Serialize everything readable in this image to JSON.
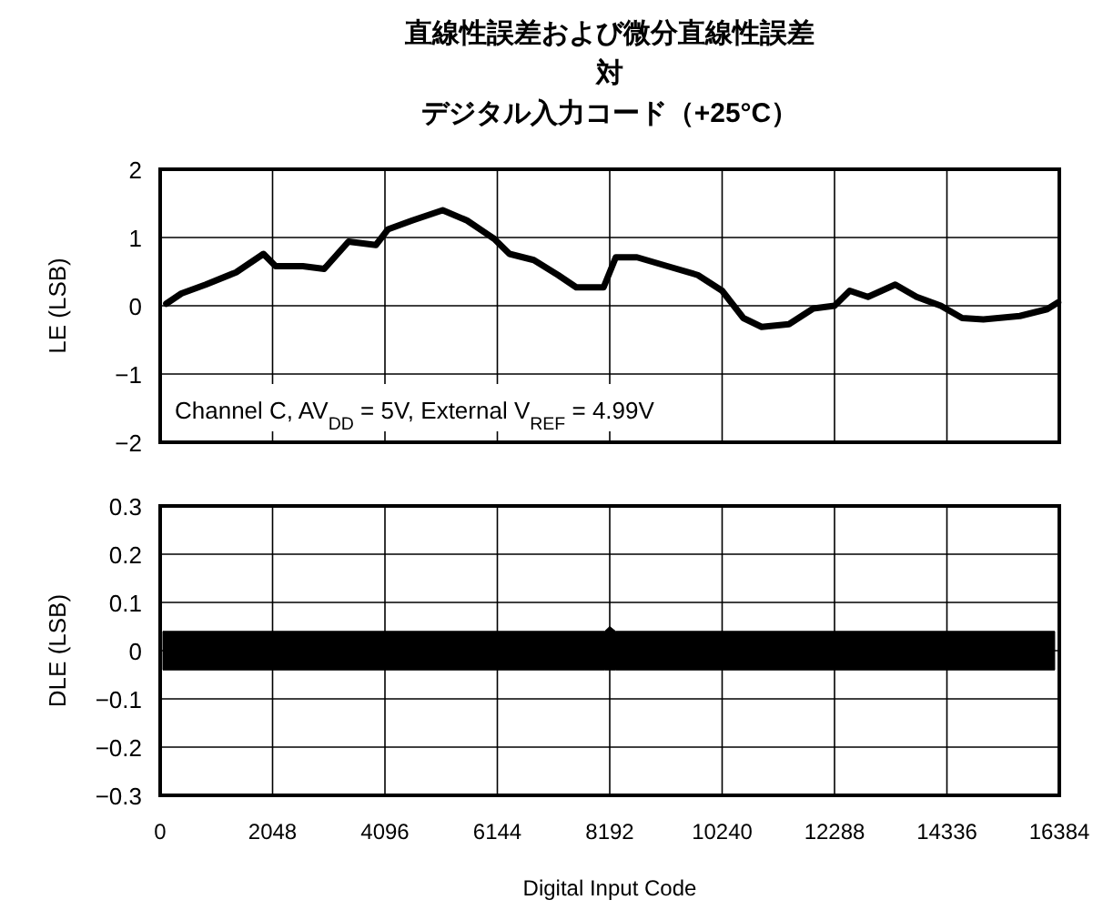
{
  "chart_data": [
    {
      "type": "line",
      "title": "直線性誤差および微分直線性誤差対デジタル入力コード（+25°C）",
      "ylabel": "LE (LSB)",
      "annotations": [
        "Channel C, AV$_{DD}$ = 5V, External V$_{REF}$ = 4.99V"
      ],
      "xlim": [
        0,
        16384
      ],
      "xticks": [
        0,
        2048,
        4096,
        6144,
        8192,
        10240,
        12288,
        14336,
        16384
      ],
      "ylim": [
        -2,
        2
      ],
      "yticks": [
        2,
        1,
        0,
        {
          "value": -1,
          "label": "−1"
        },
        {
          "value": -2,
          "label": "−2"
        }
      ],
      "grid": true,
      "tick_labels": "y",
      "series": [
        {
          "color": "#000000",
          "x": [
            111,
            387,
            830,
            1384,
            1882,
            2103,
            2600,
            2989,
            3432,
            3930,
            4151,
            4594,
            5148,
            5590,
            6088,
            6365,
            6808,
            7250,
            7582,
            8080,
            8302,
            8689,
            9243,
            9796,
            10240,
            10627,
            10960,
            11458,
            11901,
            12288,
            12565,
            12897,
            13395,
            13783,
            14225,
            14613,
            15000,
            15665,
            16163,
            16363
          ],
          "values": [
            0.03,
            0.18,
            0.31,
            0.49,
            0.76,
            0.58,
            0.58,
            0.54,
            0.94,
            0.89,
            1.12,
            1.25,
            1.4,
            1.25,
            0.98,
            0.76,
            0.67,
            0.45,
            0.27,
            0.27,
            0.71,
            0.71,
            0.58,
            0.45,
            0.22,
            -0.18,
            -0.31,
            -0.27,
            -0.04,
            0,
            0.22,
            0.13,
            0.31,
            0.13,
            0,
            -0.18,
            -0.2,
            -0.15,
            -0.05,
            0.05
          ]
        }
      ]
    },
    {
      "type": "area",
      "xlabel": "Digital Input Code",
      "ylabel": "DLE (LSB)",
      "xlim": [
        0,
        16384
      ],
      "xticks": [
        0,
        2048,
        4096,
        6144,
        8192,
        10240,
        12288,
        14336,
        16384
      ],
      "ylim": [
        -0.3,
        0.3
      ],
      "yticks": [
        0.3,
        0.2,
        0.1,
        0,
        {
          "value": -0.1,
          "label": "−0.1"
        },
        {
          "value": -0.2,
          "label": "−0.2"
        },
        {
          "value": -0.3,
          "label": "−0.3"
        }
      ],
      "grid": true,
      "series": [
        {
          "color": "#000000",
          "x": [
            50,
            4096,
            8100,
            8192,
            8300,
            12288,
            16300
          ],
          "values": [
            0.04,
            0.04,
            0.04,
            0.05,
            0.04,
            0.04,
            0.04
          ]
        },
        {
          "color": "#000000",
          "x": [
            50,
            4096,
            8100,
            8192,
            8300,
            12288,
            16300
          ],
          "values": [
            -0.04,
            -0.04,
            -0.04,
            -0.04,
            -0.04,
            -0.04,
            -0.04
          ]
        }
      ]
    }
  ]
}
